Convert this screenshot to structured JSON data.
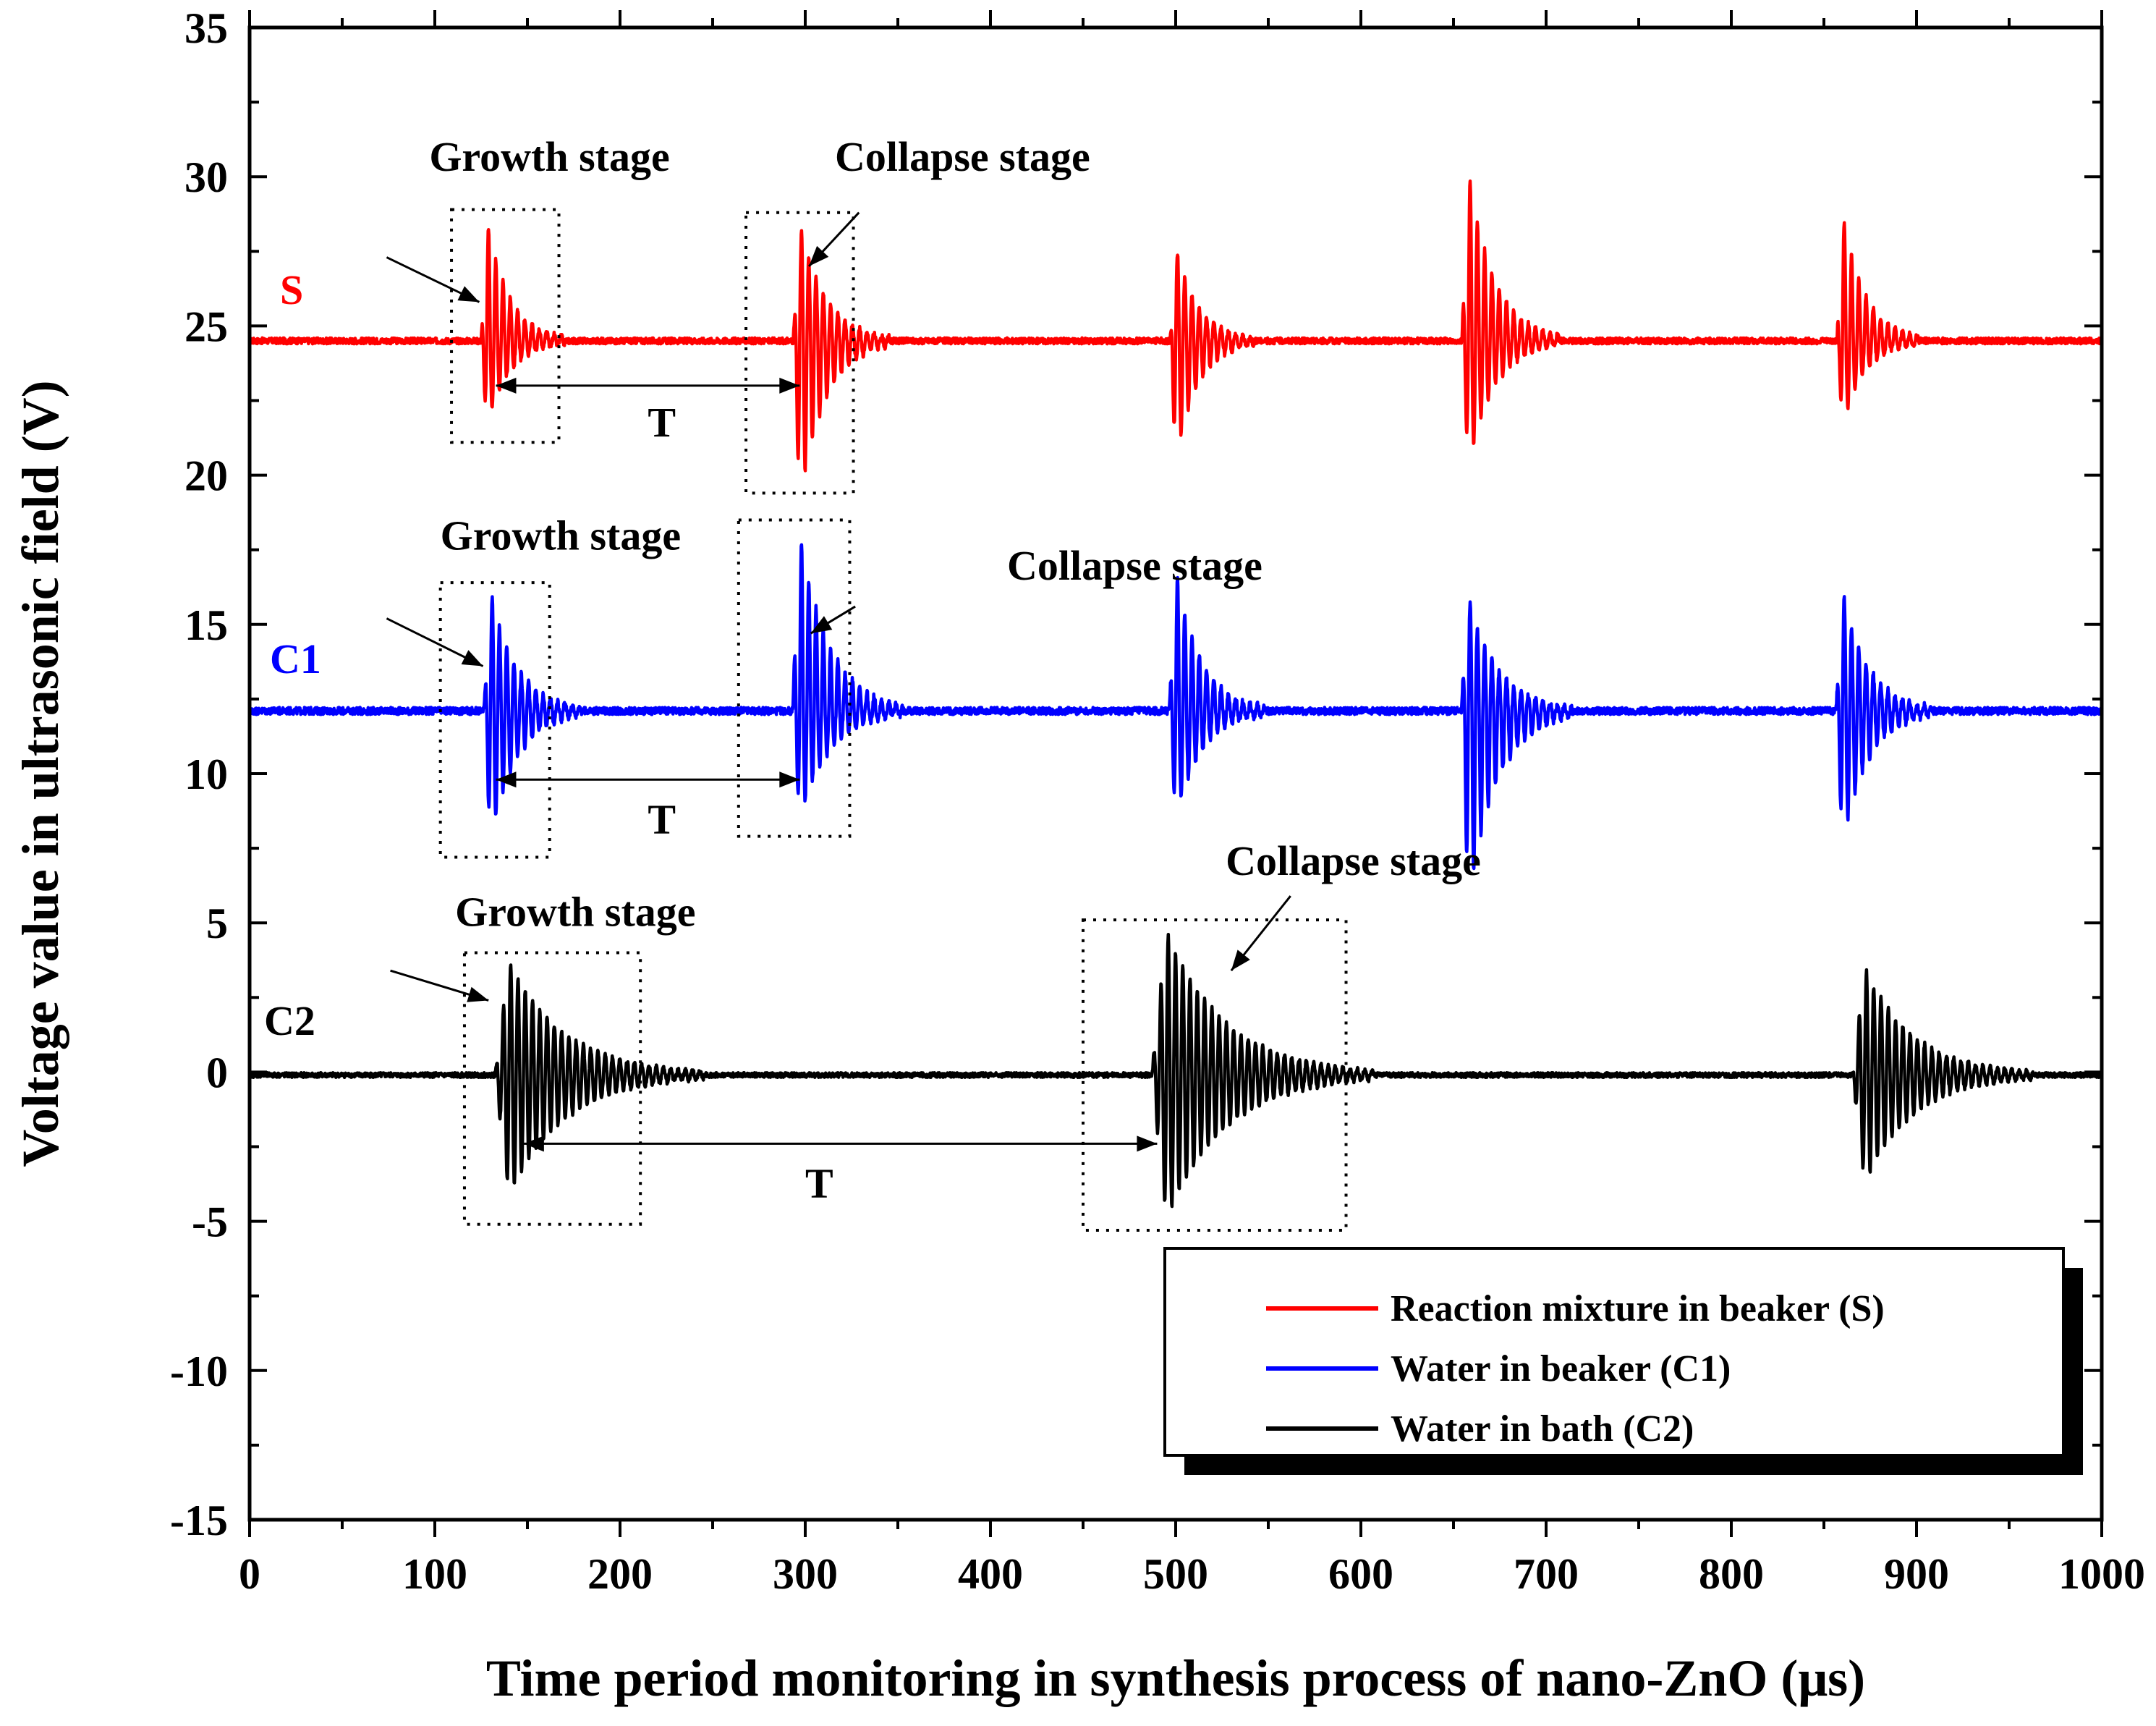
{
  "chart_data": {
    "type": "line",
    "xlabel": "Time period monitoring in synthesis process of nano-ZnO (μs)",
    "ylabel": "Voltage value in ultrasonic field (V)",
    "xlim": [
      0,
      1000
    ],
    "ylim": [
      -15,
      35
    ],
    "x_ticks": [
      "0",
      "100",
      "200",
      "300",
      "400",
      "500",
      "600",
      "700",
      "800",
      "900",
      "1000"
    ],
    "y_ticks": [
      "-15",
      "-10",
      "-5",
      "0",
      "5",
      "10",
      "15",
      "20",
      "25",
      "30",
      "35"
    ],
    "x_minor_step": 50,
    "y_minor_step": 2.5,
    "grid": false,
    "legend_position": "bottom-right",
    "series": [
      {
        "name": "Reaction mixture in beaker (S)",
        "short_label": "S",
        "color": "#ff0000",
        "baseline": 24.5,
        "noise": 0.1,
        "bursts": [
          {
            "t": 128,
            "max": 28.6,
            "min": 21.6,
            "width": 12
          },
          {
            "t": 297,
            "max": 28.4,
            "min": 19.2,
            "width": 14
          },
          {
            "t": 500,
            "max": 27.7,
            "min": 20.5,
            "width": 12
          },
          {
            "t": 658,
            "max": 30.2,
            "min": 20.3,
            "width": 14
          },
          {
            "t": 860,
            "max": 28.8,
            "min": 21.7,
            "width": 12
          }
        ]
      },
      {
        "name": "Water in beaker (C1)",
        "short_label": "C1",
        "color": "#0000ff",
        "baseline": 12.1,
        "noise": 0.12,
        "bursts": [
          {
            "t": 130,
            "max": 16.1,
            "min": 7.7,
            "width": 14
          },
          {
            "t": 297,
            "max": 18.1,
            "min": 8.5,
            "width": 16
          },
          {
            "t": 500,
            "max": 16.8,
            "min": 8.5,
            "width": 14
          },
          {
            "t": 658,
            "max": 15.9,
            "min": 5.8,
            "width": 16
          },
          {
            "t": 860,
            "max": 16.1,
            "min": 7.7,
            "width": 14
          }
        ]
      },
      {
        "name": "Water in bath (C2)",
        "short_label": "C2",
        "color": "#000000",
        "baseline": -0.1,
        "noise": 0.08,
        "bursts": [
          {
            "t": 140,
            "max": 3.7,
            "min": -4.1,
            "width": 30
          },
          {
            "t": 495,
            "max": 4.7,
            "min": -4.9,
            "width": 32
          },
          {
            "t": 872,
            "max": 3.5,
            "min": -3.7,
            "width": 26
          }
        ]
      }
    ],
    "annotations": [
      {
        "text": "Growth stage",
        "x": 97,
        "y": 30.2
      },
      {
        "text": "Collapse stage",
        "x": 316,
        "y": 30.2
      },
      {
        "text": "Growth stage",
        "x": 103,
        "y": 17.5
      },
      {
        "text": "Collapse stage",
        "x": 409,
        "y": 16.5
      },
      {
        "text": "Growth stage",
        "x": 111,
        "y": 4.9
      },
      {
        "text": "Collapse stage",
        "x": 527,
        "y": 6.6
      },
      {
        "text": "T",
        "x": 215,
        "y": 21.3
      },
      {
        "text": "T",
        "x": 215,
        "y": 8.0
      },
      {
        "text": "T",
        "x": 300,
        "y": -4.2
      }
    ],
    "period_arrows": [
      {
        "x1": 133,
        "x2": 297,
        "y": 23.0
      },
      {
        "x1": 133,
        "x2": 297,
        "y": 9.8
      },
      {
        "x1": 148,
        "x2": 490,
        "y": -2.4
      }
    ],
    "dotted_boxes": [
      {
        "x1": 109,
        "x2": 167,
        "y1": 21.1,
        "y2": 28.9
      },
      {
        "x1": 268,
        "x2": 326,
        "y1": 19.4,
        "y2": 28.8
      },
      {
        "x1": 103,
        "x2": 162,
        "y1": 7.2,
        "y2": 16.4
      },
      {
        "x1": 264,
        "x2": 324,
        "y1": 7.9,
        "y2": 18.5
      },
      {
        "x1": 116,
        "x2": 211,
        "y1": -5.1,
        "y2": 4.0
      },
      {
        "x1": 450,
        "x2": 592,
        "y1": -5.3,
        "y2": 5.1
      }
    ],
    "stage_arrows": [
      {
        "x1": 74,
        "y1": 27.3,
        "x2": 124,
        "y2": 25.8
      },
      {
        "x1": 329,
        "y1": 28.8,
        "x2": 302,
        "y2": 27.0
      },
      {
        "x1": 74,
        "y1": 15.2,
        "x2": 126,
        "y2": 13.6
      },
      {
        "x1": 327,
        "y1": 15.6,
        "x2": 303,
        "y2": 14.7
      },
      {
        "x1": 76,
        "y1": 3.4,
        "x2": 129,
        "y2": 2.4
      },
      {
        "x1": 562,
        "y1": 5.9,
        "x2": 530,
        "y2": 3.4
      }
    ]
  }
}
